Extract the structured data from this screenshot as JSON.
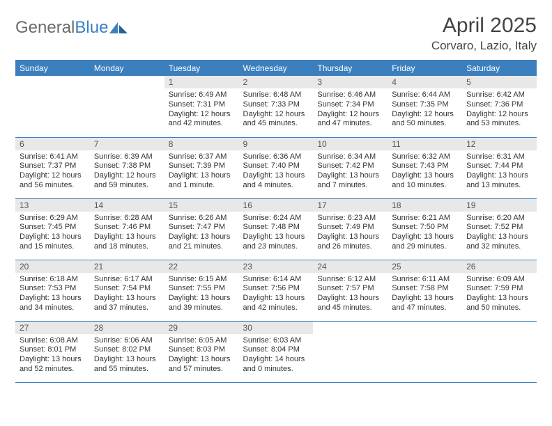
{
  "brand": {
    "part1": "General",
    "part2": "Blue"
  },
  "title": "April 2025",
  "location": "Corvaro, Lazio, Italy",
  "colors": {
    "accent": "#3b7fbf",
    "dayHeader": "#e8e8e8",
    "text": "#333333",
    "titleText": "#444444",
    "logoGray": "#6b6b6b"
  },
  "weekdays": [
    "Sunday",
    "Monday",
    "Tuesday",
    "Wednesday",
    "Thursday",
    "Friday",
    "Saturday"
  ],
  "startWeekday": 2,
  "days": [
    {
      "n": 1,
      "sunrise": "6:49 AM",
      "sunset": "7:31 PM",
      "daylight": "12 hours and 42 minutes."
    },
    {
      "n": 2,
      "sunrise": "6:48 AM",
      "sunset": "7:33 PM",
      "daylight": "12 hours and 45 minutes."
    },
    {
      "n": 3,
      "sunrise": "6:46 AM",
      "sunset": "7:34 PM",
      "daylight": "12 hours and 47 minutes."
    },
    {
      "n": 4,
      "sunrise": "6:44 AM",
      "sunset": "7:35 PM",
      "daylight": "12 hours and 50 minutes."
    },
    {
      "n": 5,
      "sunrise": "6:42 AM",
      "sunset": "7:36 PM",
      "daylight": "12 hours and 53 minutes."
    },
    {
      "n": 6,
      "sunrise": "6:41 AM",
      "sunset": "7:37 PM",
      "daylight": "12 hours and 56 minutes."
    },
    {
      "n": 7,
      "sunrise": "6:39 AM",
      "sunset": "7:38 PM",
      "daylight": "12 hours and 59 minutes."
    },
    {
      "n": 8,
      "sunrise": "6:37 AM",
      "sunset": "7:39 PM",
      "daylight": "13 hours and 1 minute."
    },
    {
      "n": 9,
      "sunrise": "6:36 AM",
      "sunset": "7:40 PM",
      "daylight": "13 hours and 4 minutes."
    },
    {
      "n": 10,
      "sunrise": "6:34 AM",
      "sunset": "7:42 PM",
      "daylight": "13 hours and 7 minutes."
    },
    {
      "n": 11,
      "sunrise": "6:32 AM",
      "sunset": "7:43 PM",
      "daylight": "13 hours and 10 minutes."
    },
    {
      "n": 12,
      "sunrise": "6:31 AM",
      "sunset": "7:44 PM",
      "daylight": "13 hours and 13 minutes."
    },
    {
      "n": 13,
      "sunrise": "6:29 AM",
      "sunset": "7:45 PM",
      "daylight": "13 hours and 15 minutes."
    },
    {
      "n": 14,
      "sunrise": "6:28 AM",
      "sunset": "7:46 PM",
      "daylight": "13 hours and 18 minutes."
    },
    {
      "n": 15,
      "sunrise": "6:26 AM",
      "sunset": "7:47 PM",
      "daylight": "13 hours and 21 minutes."
    },
    {
      "n": 16,
      "sunrise": "6:24 AM",
      "sunset": "7:48 PM",
      "daylight": "13 hours and 23 minutes."
    },
    {
      "n": 17,
      "sunrise": "6:23 AM",
      "sunset": "7:49 PM",
      "daylight": "13 hours and 26 minutes."
    },
    {
      "n": 18,
      "sunrise": "6:21 AM",
      "sunset": "7:50 PM",
      "daylight": "13 hours and 29 minutes."
    },
    {
      "n": 19,
      "sunrise": "6:20 AM",
      "sunset": "7:52 PM",
      "daylight": "13 hours and 32 minutes."
    },
    {
      "n": 20,
      "sunrise": "6:18 AM",
      "sunset": "7:53 PM",
      "daylight": "13 hours and 34 minutes."
    },
    {
      "n": 21,
      "sunrise": "6:17 AM",
      "sunset": "7:54 PM",
      "daylight": "13 hours and 37 minutes."
    },
    {
      "n": 22,
      "sunrise": "6:15 AM",
      "sunset": "7:55 PM",
      "daylight": "13 hours and 39 minutes."
    },
    {
      "n": 23,
      "sunrise": "6:14 AM",
      "sunset": "7:56 PM",
      "daylight": "13 hours and 42 minutes."
    },
    {
      "n": 24,
      "sunrise": "6:12 AM",
      "sunset": "7:57 PM",
      "daylight": "13 hours and 45 minutes."
    },
    {
      "n": 25,
      "sunrise": "6:11 AM",
      "sunset": "7:58 PM",
      "daylight": "13 hours and 47 minutes."
    },
    {
      "n": 26,
      "sunrise": "6:09 AM",
      "sunset": "7:59 PM",
      "daylight": "13 hours and 50 minutes."
    },
    {
      "n": 27,
      "sunrise": "6:08 AM",
      "sunset": "8:01 PM",
      "daylight": "13 hours and 52 minutes."
    },
    {
      "n": 28,
      "sunrise": "6:06 AM",
      "sunset": "8:02 PM",
      "daylight": "13 hours and 55 minutes."
    },
    {
      "n": 29,
      "sunrise": "6:05 AM",
      "sunset": "8:03 PM",
      "daylight": "13 hours and 57 minutes."
    },
    {
      "n": 30,
      "sunrise": "6:03 AM",
      "sunset": "8:04 PM",
      "daylight": "14 hours and 0 minutes."
    }
  ],
  "labels": {
    "sunrise": "Sunrise:",
    "sunset": "Sunset:",
    "daylight": "Daylight:"
  }
}
